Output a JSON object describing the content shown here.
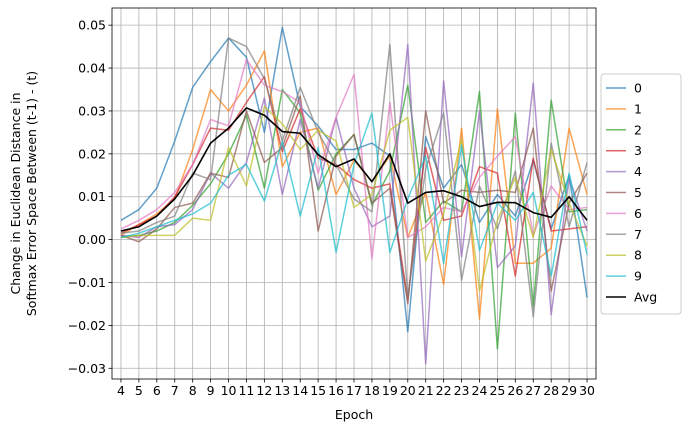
{
  "chart_data": {
    "type": "line",
    "title": "",
    "xlabel": "Epoch",
    "ylabel_lines": [
      "Change in Euclidean Distance in",
      "Softmax Error Space Between (t-1) - (t)"
    ],
    "x": [
      4,
      5,
      6,
      7,
      8,
      9,
      10,
      11,
      12,
      13,
      14,
      15,
      16,
      17,
      18,
      19,
      20,
      21,
      22,
      23,
      24,
      25,
      26,
      27,
      28,
      29,
      30
    ],
    "xlim": [
      3.5,
      30.5
    ],
    "ylim": [
      -0.0325,
      0.054
    ],
    "y_ticks": [
      -0.03,
      -0.02,
      -0.01,
      0.0,
      0.01,
      0.02,
      0.03,
      0.04,
      0.05
    ],
    "y_tick_labels": [
      "−0.03",
      "−0.02",
      "−0.01",
      "0.00",
      "0.01",
      "0.02",
      "0.03",
      "0.04",
      "0.05"
    ],
    "grid": true,
    "legend_position": "outside-right",
    "series": [
      {
        "name": "0",
        "color": "#1f77b4",
        "width": 1.5,
        "alpha": 0.7,
        "values": [
          0.0045,
          0.007,
          0.012,
          0.023,
          0.0355,
          0.0415,
          0.047,
          0.0425,
          0.025,
          0.0495,
          0.031,
          0.0265,
          0.021,
          0.021,
          0.0225,
          0.0195,
          -0.0215,
          0.024,
          0.012,
          0.0175,
          0.004,
          0.0105,
          0.0055,
          0.0185,
          0.0025,
          0.015,
          -0.0135
        ]
      },
      {
        "name": "1",
        "color": "#ff7f0e",
        "width": 1.5,
        "alpha": 0.7,
        "values": [
          0.001,
          0.0035,
          0.006,
          0.0095,
          0.021,
          0.035,
          0.03,
          0.036,
          0.044,
          0.017,
          0.025,
          0.026,
          0.0105,
          0.0185,
          0.0135,
          0.0195,
          0.0005,
          0.011,
          -0.0105,
          0.026,
          -0.0185,
          0.0305,
          -0.0055,
          -0.0055,
          -0.002,
          0.026,
          0.0105
        ]
      },
      {
        "name": "2",
        "color": "#2ca02c",
        "width": 1.5,
        "alpha": 0.7,
        "values": [
          0.0005,
          0.001,
          0.002,
          0.004,
          0.008,
          0.013,
          0.02,
          0.029,
          0.012,
          0.035,
          0.0295,
          0.0115,
          0.02,
          0.0245,
          0.008,
          0.016,
          0.036,
          0.004,
          0.009,
          0.0065,
          0.0345,
          -0.0255,
          0.0295,
          -0.0155,
          0.0325,
          0.0065,
          0.007
        ]
      },
      {
        "name": "3",
        "color": "#d62728",
        "width": 1.5,
        "alpha": 0.7,
        "values": [
          0.0015,
          0.0035,
          0.0055,
          0.01,
          0.0175,
          0.026,
          0.0255,
          0.032,
          0.038,
          0.0205,
          0.0305,
          0.019,
          0.0175,
          0.014,
          0.012,
          0.013,
          -0.014,
          0.0215,
          0.0045,
          0.0055,
          0.017,
          0.0155,
          -0.0085,
          0.019,
          0.002,
          0.0025,
          0.003
        ]
      },
      {
        "name": "4",
        "color": "#9467bd",
        "width": 1.5,
        "alpha": 0.7,
        "values": [
          0.001,
          0.0005,
          0.003,
          0.0035,
          0.007,
          0.0155,
          0.012,
          0.018,
          0.033,
          0.0105,
          0.028,
          0.012,
          0.0285,
          0.012,
          0.003,
          0.0055,
          0.0455,
          -0.029,
          0.037,
          -0.004,
          0.03,
          -0.0065,
          -0.0015,
          0.0365,
          -0.0175,
          0.0145,
          0.002
        ]
      },
      {
        "name": "5",
        "color": "#8c564b",
        "width": 1.5,
        "alpha": 0.7,
        "values": [
          0.001,
          -0.0005,
          0.0025,
          0.0075,
          0.0085,
          0.0155,
          0.0145,
          0.03,
          0.018,
          0.0215,
          0.0335,
          0.002,
          0.0195,
          0.0245,
          0.0085,
          0.012,
          -0.015,
          0.03,
          0.0085,
          0.0115,
          0.011,
          0.0115,
          0.011,
          0.026,
          -0.012,
          0.0085,
          0.0155
        ]
      },
      {
        "name": "6",
        "color": "#e377c2",
        "width": 1.5,
        "alpha": 0.7,
        "values": [
          0.0025,
          0.0045,
          0.007,
          0.011,
          0.0175,
          0.028,
          0.0265,
          0.042,
          0.036,
          0.0345,
          0.032,
          0.0155,
          0.0285,
          0.0385,
          -0.0045,
          0.032,
          0.0005,
          0.003,
          0.0075,
          0.0065,
          0.0145,
          0.0195,
          0.024,
          0.001,
          0.0125,
          0.007,
          0.0075
        ]
      },
      {
        "name": "7",
        "color": "#7f7f7f",
        "width": 1.5,
        "alpha": 0.7,
        "values": [
          0.0015,
          0.002,
          0.004,
          0.0055,
          0.0155,
          0.014,
          0.047,
          0.045,
          0.0375,
          0.023,
          0.0355,
          0.025,
          0.0175,
          0.0095,
          0.0065,
          0.0455,
          -0.0135,
          0.0165,
          0.0295,
          -0.0095,
          0.0125,
          0.0025,
          0.016,
          -0.018,
          0.0225,
          0.003,
          0.018
        ]
      },
      {
        "name": "8",
        "color": "#bcbd22",
        "width": 1.5,
        "alpha": 0.7,
        "values": [
          0.0005,
          0.001,
          0.001,
          0.001,
          0.005,
          0.0045,
          0.0215,
          0.0125,
          0.031,
          0.027,
          0.021,
          0.0255,
          0.023,
          0.0075,
          0.0105,
          0.0255,
          0.0285,
          -0.005,
          0.006,
          0.0235,
          -0.012,
          0.0045,
          0.0145,
          0.0005,
          0.021,
          0.0085,
          -0.0015
        ]
      },
      {
        "name": "9",
        "color": "#17becf",
        "width": 1.5,
        "alpha": 0.7,
        "values": [
          0.0005,
          0.0015,
          0.003,
          0.0045,
          0.006,
          0.0085,
          0.015,
          0.0175,
          0.009,
          0.023,
          0.0055,
          0.0215,
          -0.003,
          0.0175,
          0.0295,
          -0.003,
          0.0095,
          0.0195,
          -0.0055,
          0.022,
          -0.0025,
          0.0085,
          0.0045,
          0.011,
          -0.0085,
          0.0155,
          -0.0035
        ]
      },
      {
        "name": "Avg",
        "color": "#000000",
        "width": 1.6,
        "alpha": 1.0,
        "values": [
          0.002,
          0.003,
          0.0055,
          0.0095,
          0.015,
          0.0225,
          0.026,
          0.0307,
          0.029,
          0.0252,
          0.0248,
          0.0198,
          0.017,
          0.0188,
          0.0135,
          0.02,
          0.0085,
          0.011,
          0.0114,
          0.01,
          0.0077,
          0.0087,
          0.0086,
          0.0063,
          0.0052,
          0.01,
          0.0045
        ]
      }
    ]
  }
}
